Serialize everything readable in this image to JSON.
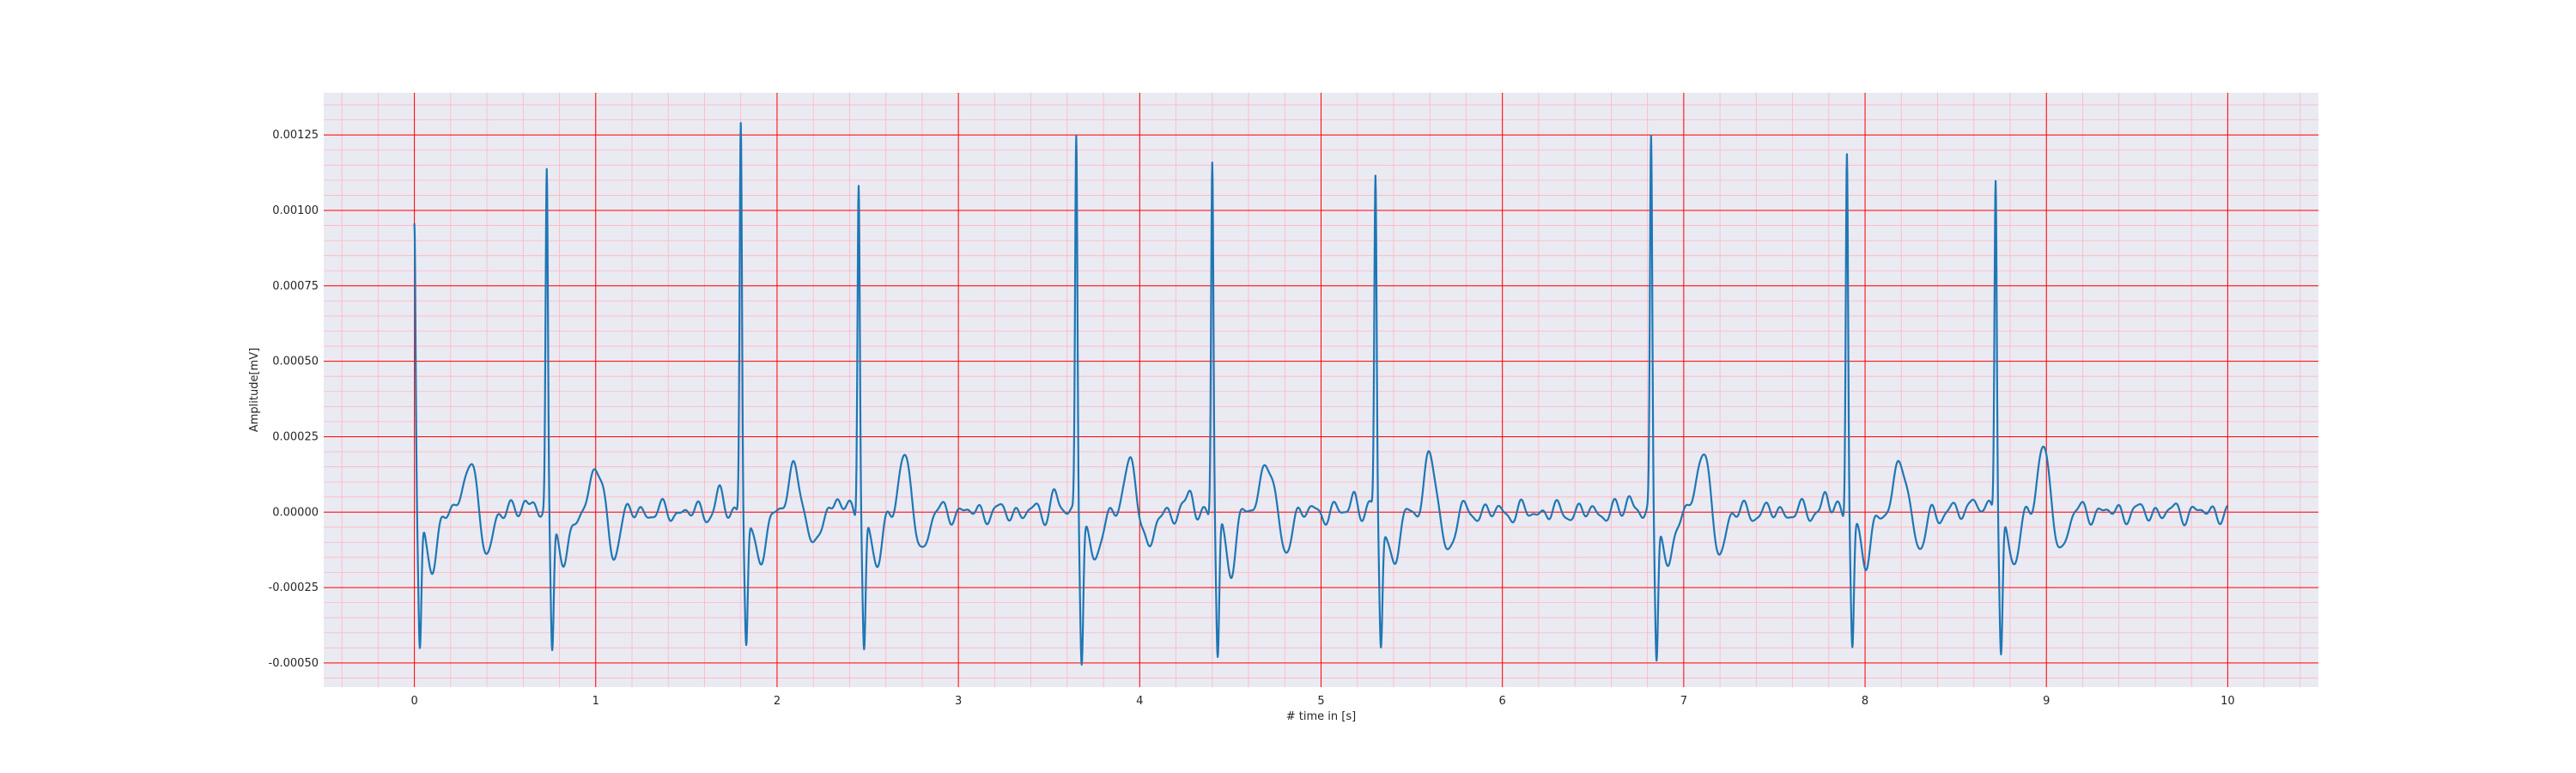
{
  "chart_data": {
    "type": "line",
    "title": "",
    "xlabel": "# time in [s]",
    "ylabel": "Amplitude[mV]",
    "xlim": [
      -0.5,
      10.5
    ],
    "ylim": [
      -0.00058,
      0.00139
    ],
    "xticks": [
      0,
      1,
      2,
      3,
      4,
      5,
      6,
      7,
      8,
      9,
      10
    ],
    "xtick_labels": [
      "0",
      "1",
      "2",
      "3",
      "4",
      "5",
      "6",
      "7",
      "8",
      "9",
      "10"
    ],
    "yticks": [
      -0.0005,
      -0.00025,
      0.0,
      0.00025,
      0.0005,
      0.00075,
      0.001,
      0.00125
    ],
    "ytick_labels": [
      "-0.00050",
      "-0.00025",
      "0.00000",
      "0.00025",
      "0.00050",
      "0.00075",
      "0.00100",
      "0.00125"
    ],
    "grid": true,
    "minor_grid": true,
    "background_color": "#eaeaf2",
    "major_grid_color": "#ff0000",
    "minor_grid_color": "#ffb6c1",
    "line_color": "#1f77b4",
    "series": [
      {
        "beats": [
          {
            "t": 0.0,
            "r": 0.00094,
            "s": -0.00047
          },
          {
            "t": 0.73,
            "r": 0.00112,
            "s": -0.00044
          },
          {
            "t": 1.8,
            "r": 0.00131,
            "s": -0.00042
          },
          {
            "t": 2.45,
            "r": 0.00112,
            "s": -0.00045
          },
          {
            "t": 3.65,
            "r": 0.00125,
            "s": -0.00046
          },
          {
            "t": 4.4,
            "r": 0.00117,
            "s": -0.00049
          },
          {
            "t": 5.3,
            "r": 0.00111,
            "s": -0.00042
          },
          {
            "t": 6.82,
            "r": 0.00121,
            "s": -0.00047
          },
          {
            "t": 7.9,
            "r": 0.00122,
            "s": -0.00043
          },
          {
            "t": 8.72,
            "r": 0.00113,
            "s": -0.00045
          }
        ],
        "t_waves": [
          {
            "t": 0.3,
            "a": 0.00017
          },
          {
            "t": 1.0,
            "a": 0.00015
          },
          {
            "t": 2.1,
            "a": 0.00015
          },
          {
            "t": 2.7,
            "a": 0.00017
          },
          {
            "t": 3.95,
            "a": 0.00016
          },
          {
            "t": 4.7,
            "a": 0.00018
          },
          {
            "t": 5.6,
            "a": 0.00017
          },
          {
            "t": 7.1,
            "a": 0.0002
          },
          {
            "t": 8.2,
            "a": 0.00017
          },
          {
            "t": 8.98,
            "a": 0.0002
          }
        ],
        "x_end": 10.0
      }
    ]
  }
}
